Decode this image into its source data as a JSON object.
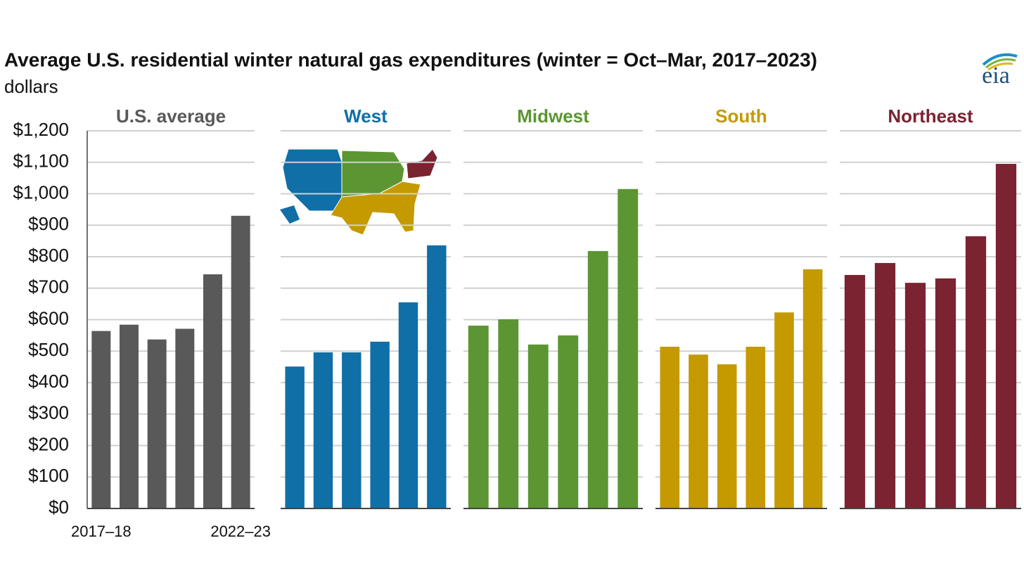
{
  "header": {
    "title": "Average U.S. residential winter natural gas expenditures (winter = Oct–Mar, 2017–2023)",
    "unit": "dollars",
    "logo": "eia"
  },
  "chart_data": [
    {
      "type": "bar",
      "title": "U.S. average",
      "color": "#595959",
      "categories": [
        "2017–18",
        null,
        null,
        null,
        null,
        "2022–23"
      ],
      "values": [
        564,
        584,
        537,
        571,
        744,
        930
      ],
      "ylim": [
        0,
        1200
      ],
      "yticks": [
        {
          "value": 0,
          "label": "$0"
        },
        {
          "value": 100,
          "label": "$100"
        },
        {
          "value": 200,
          "label": "$200"
        },
        {
          "value": 300,
          "label": "$300"
        },
        {
          "value": 400,
          "label": "$400"
        },
        {
          "value": 500,
          "label": "$500"
        },
        {
          "value": 600,
          "label": "$600"
        },
        {
          "value": 700,
          "label": "$700"
        },
        {
          "value": 800,
          "label": "$800"
        },
        {
          "value": 900,
          "label": "$900"
        },
        {
          "value": 1000,
          "label": "$1,000"
        },
        {
          "value": 1100,
          "label": "$1,100"
        },
        {
          "value": 1200,
          "label": "$1,200"
        }
      ],
      "grid": true
    },
    {
      "type": "bar",
      "title": "West",
      "color": "#0f6fa6",
      "categories": [
        null,
        null,
        null,
        null,
        null,
        null
      ],
      "values": [
        451,
        496,
        496,
        530,
        655,
        836
      ],
      "ylim": [
        0,
        1200
      ],
      "yticks": [
        0,
        100,
        200,
        300,
        400,
        500,
        600,
        700,
        800,
        900,
        1000,
        1100,
        1200
      ],
      "grid": true
    },
    {
      "type": "bar",
      "title": "Midwest",
      "color": "#5b9632",
      "categories": [
        null,
        null,
        null,
        null,
        null,
        null
      ],
      "values": [
        581,
        601,
        521,
        550,
        818,
        1015
      ],
      "ylim": [
        0,
        1200
      ],
      "yticks": [
        0,
        100,
        200,
        300,
        400,
        500,
        600,
        700,
        800,
        900,
        1000,
        1100,
        1200
      ],
      "grid": true
    },
    {
      "type": "bar",
      "title": "South",
      "color": "#c49a00",
      "categories": [
        null,
        null,
        null,
        null,
        null,
        null
      ],
      "values": [
        514,
        489,
        458,
        514,
        623,
        760
      ],
      "ylim": [
        0,
        1200
      ],
      "yticks": [
        0,
        100,
        200,
        300,
        400,
        500,
        600,
        700,
        800,
        900,
        1000,
        1100,
        1200
      ],
      "grid": true
    },
    {
      "type": "bar",
      "title": "Northeast",
      "color": "#7b2330",
      "categories": [
        null,
        null,
        null,
        null,
        null,
        null
      ],
      "values": [
        742,
        780,
        717,
        731,
        865,
        1095
      ],
      "ylim": [
        0,
        1200
      ],
      "yticks": [
        0,
        100,
        200,
        300,
        400,
        500,
        600,
        700,
        800,
        900,
        1000,
        1100,
        1200
      ],
      "grid": true
    }
  ]
}
